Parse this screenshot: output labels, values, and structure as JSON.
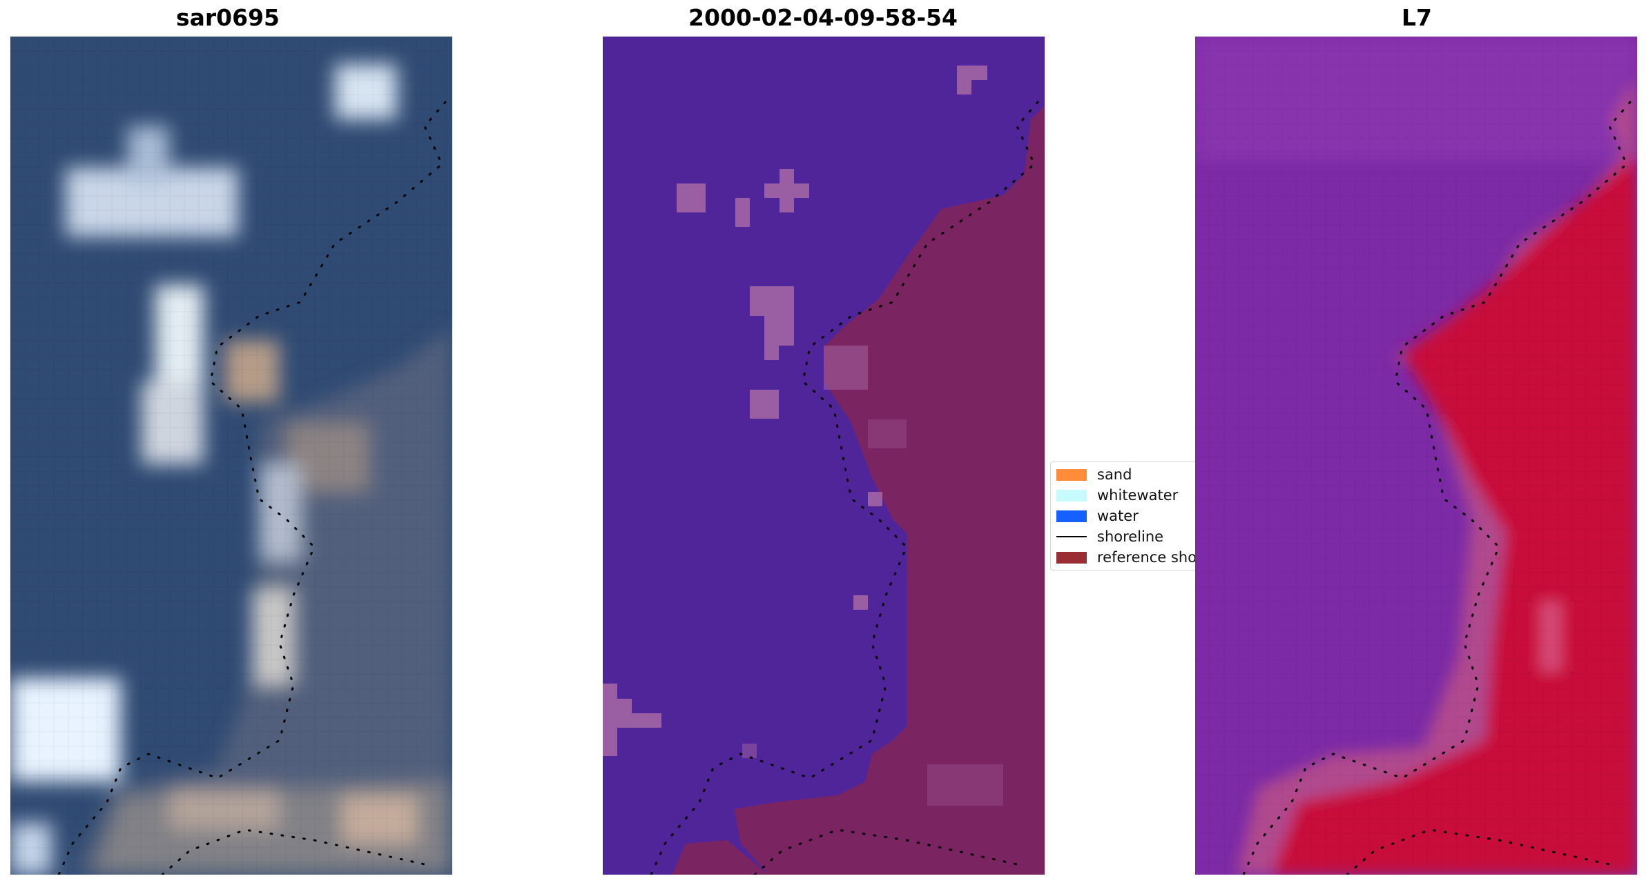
{
  "panels": [
    {
      "title": "sar0695",
      "kind": "rgb-satellite-image"
    },
    {
      "title": "2000-02-04-09-58-54",
      "kind": "classified-image"
    },
    {
      "title": "L7",
      "kind": "water-index-image"
    }
  ],
  "legend": {
    "items": [
      {
        "label": "sand",
        "color": "#ff8c3a",
        "type": "patch"
      },
      {
        "label": "whitewater",
        "color": "#c8fbff",
        "type": "patch"
      },
      {
        "label": "water",
        "color": "#1560ff",
        "type": "patch"
      },
      {
        "label": "shoreline",
        "color": "#000000",
        "type": "line"
      },
      {
        "label": "reference sho",
        "color": "#9a2d33",
        "type": "patch"
      }
    ]
  },
  "colors": {
    "sar_water": "#2f4a73",
    "class_background": "#51259a",
    "class_land": "#7a2462",
    "class_patch": "#a86aa3",
    "index_water": "#7c2aa6",
    "index_land": "#c8103a"
  }
}
